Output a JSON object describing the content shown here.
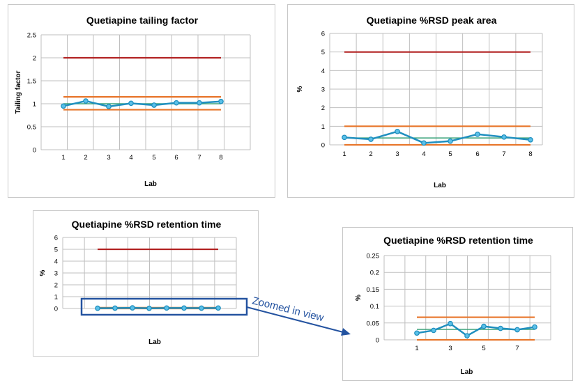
{
  "colors": {
    "upper_limit": "#b22222",
    "lower_limit": "#e8762b",
    "mean": "#3aa27a",
    "data": "#1f8fbf",
    "grid": "#bfbfbf",
    "highlight": "#2453a0"
  },
  "annotation": {
    "text": "Zoomed in view"
  },
  "chart_data": [
    {
      "type": "line",
      "title": "Quetiapine tailing factor",
      "xlabel": "Lab",
      "ylabel": "Tailing factor",
      "x": [
        1,
        2,
        3,
        4,
        5,
        6,
        7,
        8
      ],
      "xticks": [
        "1",
        "2",
        "3",
        "4",
        "5",
        "6",
        "7",
        "8"
      ],
      "ylim": [
        0,
        2.5
      ],
      "yticks": [
        "0",
        "0.5",
        "1",
        "1.5",
        "2",
        "2.5"
      ],
      "grid": true,
      "series": [
        {
          "role": "data",
          "values": [
            0.95,
            1.06,
            0.94,
            1.01,
            0.97,
            1.02,
            1.02,
            1.05
          ]
        },
        {
          "role": "mean",
          "values": [
            1.0,
            1.0,
            1.0,
            1.0,
            1.0,
            1.0,
            1.0,
            1.0
          ]
        },
        {
          "role": "upper_limit",
          "values": [
            2.0,
            2.0,
            2.0,
            2.0,
            2.0,
            2.0,
            2.0,
            2.0
          ]
        },
        {
          "role": "upper_spec",
          "values": [
            1.15,
            1.15,
            1.15,
            1.15,
            1.15,
            1.15,
            1.15,
            1.15
          ]
        },
        {
          "role": "lower_spec",
          "values": [
            0.87,
            0.87,
            0.87,
            0.87,
            0.87,
            0.87,
            0.87,
            0.87
          ]
        }
      ]
    },
    {
      "type": "line",
      "title": "Quetiapine %RSD peak area",
      "xlabel": "Lab",
      "ylabel": "%",
      "x": [
        1,
        2,
        3,
        4,
        5,
        6,
        7,
        8
      ],
      "xticks": [
        "1",
        "2",
        "3",
        "4",
        "5",
        "6",
        "7",
        "8"
      ],
      "ylim": [
        0,
        6
      ],
      "yticks": [
        "0",
        "1",
        "2",
        "3",
        "4",
        "5",
        "6"
      ],
      "grid": true,
      "series": [
        {
          "role": "data",
          "values": [
            0.4,
            0.3,
            0.72,
            0.1,
            0.2,
            0.57,
            0.42,
            0.27
          ]
        },
        {
          "role": "mean",
          "values": [
            0.37,
            0.37,
            0.37,
            0.37,
            0.37,
            0.37,
            0.37,
            0.37
          ]
        },
        {
          "role": "upper_limit",
          "values": [
            5,
            5,
            5,
            5,
            5,
            5,
            5,
            5
          ]
        },
        {
          "role": "upper_spec",
          "values": [
            1.0,
            1.0,
            1.0,
            1.0,
            1.0,
            1.0,
            1.0,
            1.0
          ]
        },
        {
          "role": "lower_spec",
          "values": [
            0,
            0,
            0,
            0,
            0,
            0,
            0,
            0
          ]
        }
      ]
    },
    {
      "type": "line",
      "title": "Quetiapine %RSD retention time",
      "xlabel": "Lab",
      "ylabel": "%",
      "x": [
        1,
        2,
        3,
        4,
        5,
        6,
        7,
        8
      ],
      "xticks": [],
      "ylim": [
        0,
        6
      ],
      "yticks": [
        "0",
        "1",
        "2",
        "3",
        "4",
        "5",
        "6"
      ],
      "grid": true,
      "series": [
        {
          "role": "data",
          "values": [
            0.02,
            0.03,
            0.05,
            0.015,
            0.04,
            0.035,
            0.03,
            0.04
          ]
        },
        {
          "role": "mean",
          "values": [
            0.03,
            0.03,
            0.03,
            0.03,
            0.03,
            0.03,
            0.03,
            0.03
          ]
        },
        {
          "role": "upper_limit",
          "values": [
            5,
            5,
            5,
            5,
            5,
            5,
            5,
            5
          ]
        },
        {
          "role": "upper_spec",
          "values": [
            0.067,
            0.067,
            0.067,
            0.067,
            0.067,
            0.067,
            0.067,
            0.067
          ]
        },
        {
          "role": "lower_spec",
          "values": [
            0,
            0,
            0,
            0,
            0,
            0,
            0,
            0
          ]
        }
      ]
    },
    {
      "type": "line",
      "title": "Quetiapine %RSD retention time",
      "xlabel": "Lab",
      "ylabel": "%",
      "x": [
        1,
        2,
        3,
        4,
        5,
        6,
        7,
        8
      ],
      "xticks": [
        "1",
        "3",
        "5",
        "7"
      ],
      "ylim": [
        0,
        0.25
      ],
      "yticks": [
        "0",
        "0.05",
        "0.1",
        "0.15",
        "0.2",
        "0.25"
      ],
      "grid": true,
      "series": [
        {
          "role": "data",
          "values": [
            0.02,
            0.028,
            0.048,
            0.012,
            0.04,
            0.034,
            0.03,
            0.038
          ]
        },
        {
          "role": "mean",
          "values": [
            0.031,
            0.031,
            0.031,
            0.031,
            0.031,
            0.031,
            0.031,
            0.031
          ]
        },
        {
          "role": "upper_spec",
          "values": [
            0.067,
            0.067,
            0.067,
            0.067,
            0.067,
            0.067,
            0.067,
            0.067
          ]
        },
        {
          "role": "lower_spec",
          "values": [
            0,
            0,
            0,
            0,
            0,
            0,
            0,
            0
          ]
        }
      ]
    }
  ]
}
